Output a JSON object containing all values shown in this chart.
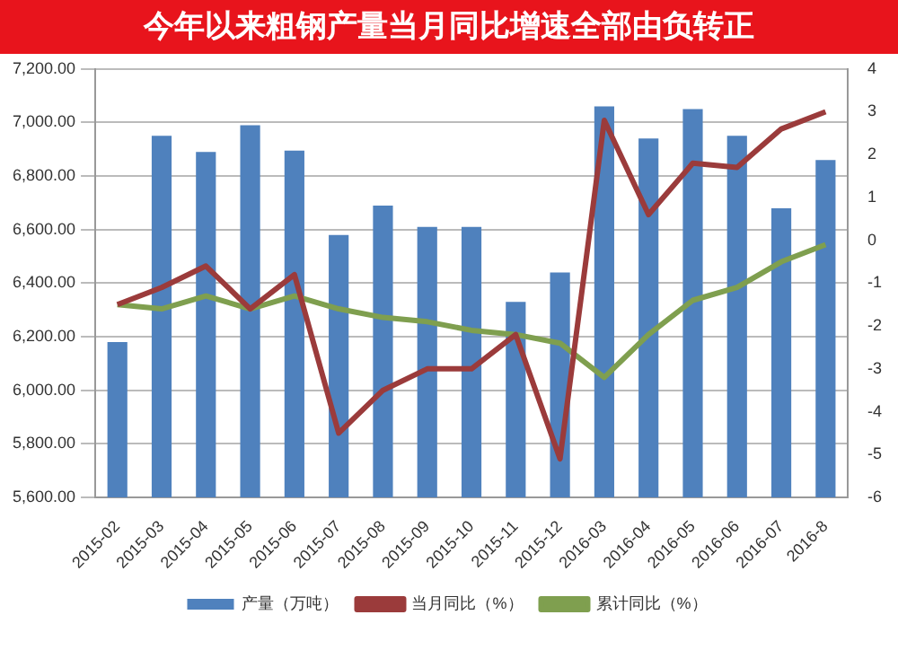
{
  "chart_data": {
    "type": "bar",
    "title": "今年以来粗钢产量当月同比增速全部由负转正",
    "categories": [
      "2015-02",
      "2015-03",
      "2015-04",
      "2015-05",
      "2015-06",
      "2015-07",
      "2015-08",
      "2015-09",
      "2015-10",
      "2015-11",
      "2015-12",
      "2016-03",
      "2016-04",
      "2016-05",
      "2016-06",
      "2016-07",
      "2016-8"
    ],
    "series": [
      {
        "name": "产量（万吨）",
        "color": "#4f81bd",
        "values": [
          6180,
          6950,
          6890,
          6990,
          6895,
          6580,
          6690,
          6610,
          6610,
          6330,
          6440,
          7060,
          6940,
          7050,
          6950,
          6680,
          6860
        ]
      },
      {
        "name": "当月同比（%）",
        "type": "line",
        "axis": "y2",
        "color": "#9b3b3b",
        "values": [
          -1.5,
          -1.1,
          -0.6,
          -1.6,
          -0.8,
          -4.5,
          -3.5,
          -3.0,
          -3.0,
          -2.2,
          -5.1,
          2.8,
          0.6,
          1.8,
          1.7,
          2.6,
          3.0
        ]
      },
      {
        "name": "累计同比（%）",
        "type": "line",
        "axis": "y2",
        "color": "#7f9f4f",
        "values": [
          -1.5,
          -1.6,
          -1.3,
          -1.6,
          -1.3,
          -1.6,
          -1.8,
          -1.9,
          -2.1,
          -2.2,
          -2.4,
          -3.2,
          -2.2,
          -1.4,
          -1.1,
          -0.5,
          -0.1
        ]
      }
    ],
    "ylim": [
      5600,
      7200
    ],
    "yticks": [
      {
        "value": 5600,
        "label": "5,600.00"
      },
      {
        "value": 5800,
        "label": "5,800.00"
      },
      {
        "value": 6000,
        "label": "6,000.00"
      },
      {
        "value": 6200,
        "label": "6,200.00"
      },
      {
        "value": 6400,
        "label": "6,400.00"
      },
      {
        "value": 6600,
        "label": "6,600.00"
      },
      {
        "value": 6800,
        "label": "6,800.00"
      },
      {
        "value": 7000,
        "label": "7,000.00"
      },
      {
        "value": 7200,
        "label": "7,200.00"
      }
    ],
    "y2lim": [
      -6,
      4
    ],
    "y2ticks": [
      -6,
      -5,
      -4,
      -3,
      -2,
      -1,
      0,
      1,
      2,
      3,
      4
    ],
    "grid": "y",
    "legend": "bottom",
    "marker": "none",
    "line_style": "solid"
  }
}
